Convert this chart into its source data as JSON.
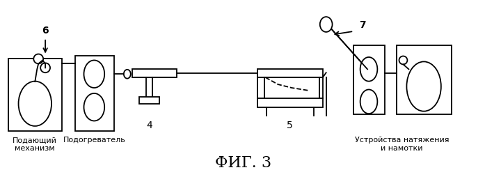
{
  "bg_color": "#ffffff",
  "line_color": "#000000",
  "fig_label": "ФИГ. 3",
  "label_6": "6",
  "label_7": "7",
  "label_4": "4",
  "label_5": "5",
  "text_feeder": "Подающий\nмеханизм",
  "text_heater": "Подогреватель",
  "text_tension": "Устройства натяжения\nи намотки",
  "fig_title_fontsize": 16,
  "annot_fontsize": 10,
  "small_fontsize": 8
}
